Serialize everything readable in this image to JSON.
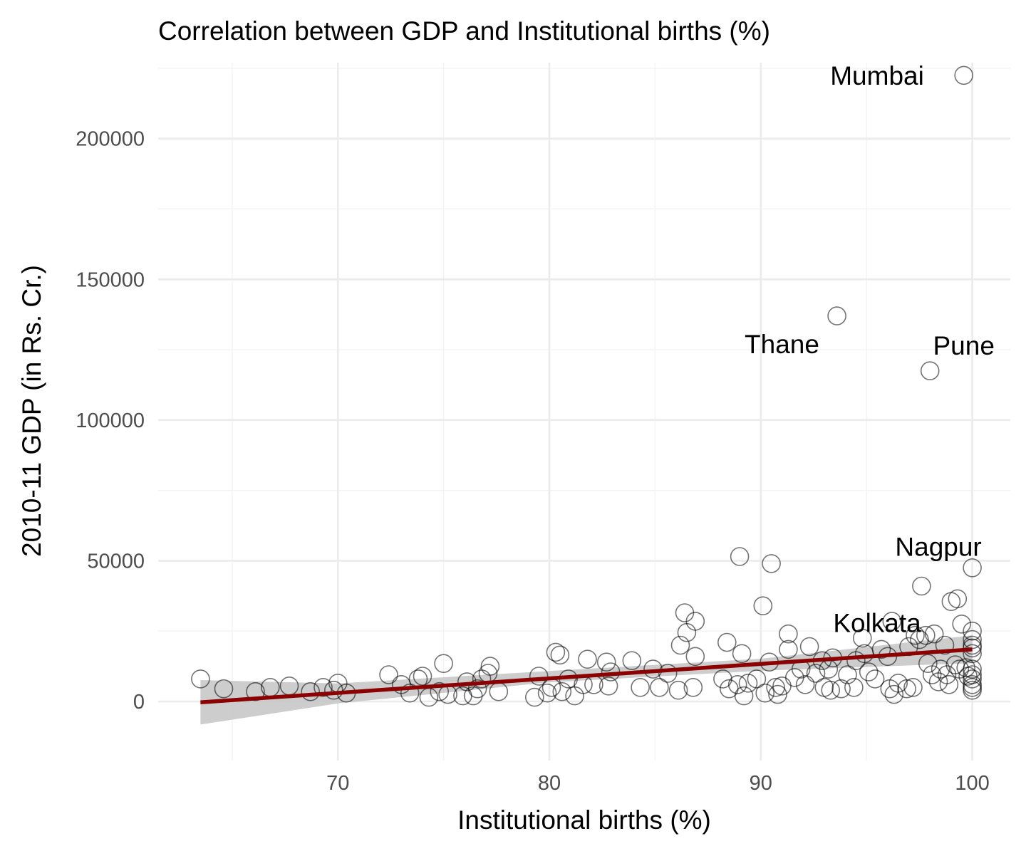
{
  "chart_data": {
    "type": "scatter",
    "title": "Correlation between GDP and Institutional births (%)",
    "xlabel": "Institutional births (%)",
    "ylabel": "2010-11 GDP (in Rs. Cr.)",
    "xlim": [
      61.5,
      101.8
    ],
    "ylim": [
      -21000,
      227000
    ],
    "x_ticks": [
      70,
      80,
      90,
      100
    ],
    "y_ticks": [
      0,
      50000,
      100000,
      150000,
      200000
    ],
    "x_tick_labels": [
      "70",
      "80",
      "90",
      "100"
    ],
    "y_tick_labels": [
      "0",
      "50000",
      "100000",
      "150000",
      "200000"
    ],
    "grid": true,
    "colors": {
      "trend_line": "#8b0000",
      "confidence_band": "#c8c8c8",
      "points": "#000000"
    },
    "trend": {
      "x": [
        63.5,
        100
      ],
      "y": [
        -300,
        18500
      ],
      "band_x": [
        63.5,
        70,
        80,
        90,
        100
      ],
      "band_lower": [
        -8200,
        -700,
        6800,
        10900,
        13600
      ],
      "band_upper": [
        7600,
        6400,
        10800,
        15200,
        23500
      ]
    },
    "points": [
      [
        63.5,
        8000
      ],
      [
        64.6,
        4500
      ],
      [
        66.1,
        3500
      ],
      [
        66.8,
        5000
      ],
      [
        67.7,
        5500
      ],
      [
        68.7,
        3500
      ],
      [
        69.3,
        5000
      ],
      [
        69.8,
        4000
      ],
      [
        70,
        6500
      ],
      [
        70.4,
        3000
      ],
      [
        72.4,
        9500
      ],
      [
        73,
        6000
      ],
      [
        73.4,
        3000
      ],
      [
        73.8,
        8000
      ],
      [
        74,
        9000
      ],
      [
        74.3,
        1500
      ],
      [
        74.8,
        3500
      ],
      [
        75,
        13500
      ],
      [
        75.2,
        2500
      ],
      [
        75.9,
        2000
      ],
      [
        76.1,
        7000
      ],
      [
        76.4,
        2000
      ],
      [
        76.6,
        4500
      ],
      [
        76.8,
        8000
      ],
      [
        77.1,
        10000
      ],
      [
        77.2,
        12500
      ],
      [
        77.6,
        3500
      ],
      [
        79.3,
        1500
      ],
      [
        79.5,
        9000
      ],
      [
        79.9,
        3000
      ],
      [
        80.1,
        5000
      ],
      [
        80.3,
        17500
      ],
      [
        80.5,
        16500
      ],
      [
        80.6,
        3500
      ],
      [
        80.9,
        8000
      ],
      [
        81.2,
        2000
      ],
      [
        81.6,
        6000
      ],
      [
        81.8,
        15000
      ],
      [
        82.1,
        6000
      ],
      [
        82.8,
        5500
      ],
      [
        82.7,
        14000
      ],
      [
        82.9,
        10500
      ],
      [
        83.9,
        14500
      ],
      [
        84.3,
        5000
      ],
      [
        84.9,
        11500
      ],
      [
        85.2,
        5000
      ],
      [
        85.6,
        10000
      ],
      [
        86.1,
        4000
      ],
      [
        86.2,
        20000
      ],
      [
        86.4,
        31500
      ],
      [
        86.5,
        24500
      ],
      [
        86.9,
        28500
      ],
      [
        86.9,
        16000
      ],
      [
        86.8,
        5000
      ],
      [
        88.2,
        8000
      ],
      [
        88.4,
        21000
      ],
      [
        88.5,
        4500
      ],
      [
        88.9,
        6000
      ],
      [
        89,
        51500
      ],
      [
        89.1,
        17000
      ],
      [
        89.2,
        2000
      ],
      [
        89.4,
        6500
      ],
      [
        89.8,
        8000
      ],
      [
        90.2,
        3000
      ],
      [
        90.1,
        34000
      ],
      [
        90.4,
        14000
      ],
      [
        90.5,
        49000
      ],
      [
        90.7,
        5000
      ],
      [
        90.8,
        2500
      ],
      [
        91,
        5500
      ],
      [
        91.3,
        24000
      ],
      [
        91.3,
        18500
      ],
      [
        91.6,
        8500
      ],
      [
        91.9,
        11500
      ],
      [
        92.1,
        6000
      ],
      [
        92.3,
        19500
      ],
      [
        92.6,
        10000
      ],
      [
        92.9,
        14500
      ],
      [
        93,
        5000
      ],
      [
        93.2,
        11500
      ],
      [
        93.3,
        4000
      ],
      [
        93.4,
        15500
      ],
      [
        93.6,
        137000
      ],
      [
        93.8,
        4500
      ],
      [
        94.1,
        9500
      ],
      [
        94.4,
        5000
      ],
      [
        94.5,
        14500
      ],
      [
        94.8,
        22500
      ],
      [
        94.9,
        17000
      ],
      [
        95.1,
        10500
      ],
      [
        95.4,
        8000
      ],
      [
        95.7,
        18500
      ],
      [
        96,
        16000
      ],
      [
        96.2,
        28500
      ],
      [
        96.1,
        4500
      ],
      [
        96.3,
        2500
      ],
      [
        96.5,
        6500
      ],
      [
        96.9,
        4500
      ],
      [
        97,
        19500
      ],
      [
        97.2,
        5000
      ],
      [
        97.3,
        23500
      ],
      [
        97.5,
        22000
      ],
      [
        97.6,
        41000
      ],
      [
        97.8,
        23500
      ],
      [
        97.9,
        13500
      ],
      [
        98,
        117500
      ],
      [
        98.1,
        9500
      ],
      [
        98.2,
        24000
      ],
      [
        98.4,
        7000
      ],
      [
        98.5,
        11500
      ],
      [
        98.7,
        20000
      ],
      [
        98.8,
        9500
      ],
      [
        98.9,
        6000
      ],
      [
        99,
        35500
      ],
      [
        99.2,
        13000
      ],
      [
        99.3,
        36500
      ],
      [
        99.4,
        11500
      ],
      [
        99.5,
        27500
      ],
      [
        99.6,
        222500
      ],
      [
        99.7,
        12000
      ],
      [
        99.8,
        9000
      ],
      [
        100,
        47500
      ],
      [
        100,
        25000
      ],
      [
        100,
        22000
      ],
      [
        100,
        20000
      ],
      [
        100,
        19000
      ],
      [
        100,
        17000
      ],
      [
        100,
        11500
      ],
      [
        100,
        9500
      ],
      [
        100,
        8000
      ],
      [
        100,
        6000
      ],
      [
        100,
        5000
      ],
      [
        100,
        4000
      ]
    ],
    "annotations": [
      {
        "text": "Mumbai",
        "x": 95.5,
        "y": 222500
      },
      {
        "text": "Thane",
        "x": 91.0,
        "y": 127000
      },
      {
        "text": "Pune",
        "x": 99.6,
        "y": 126500
      },
      {
        "text": "Nagpur",
        "x": 98.4,
        "y": 55000
      },
      {
        "text": "Kolkata",
        "x": 95.5,
        "y": 28000
      }
    ]
  }
}
